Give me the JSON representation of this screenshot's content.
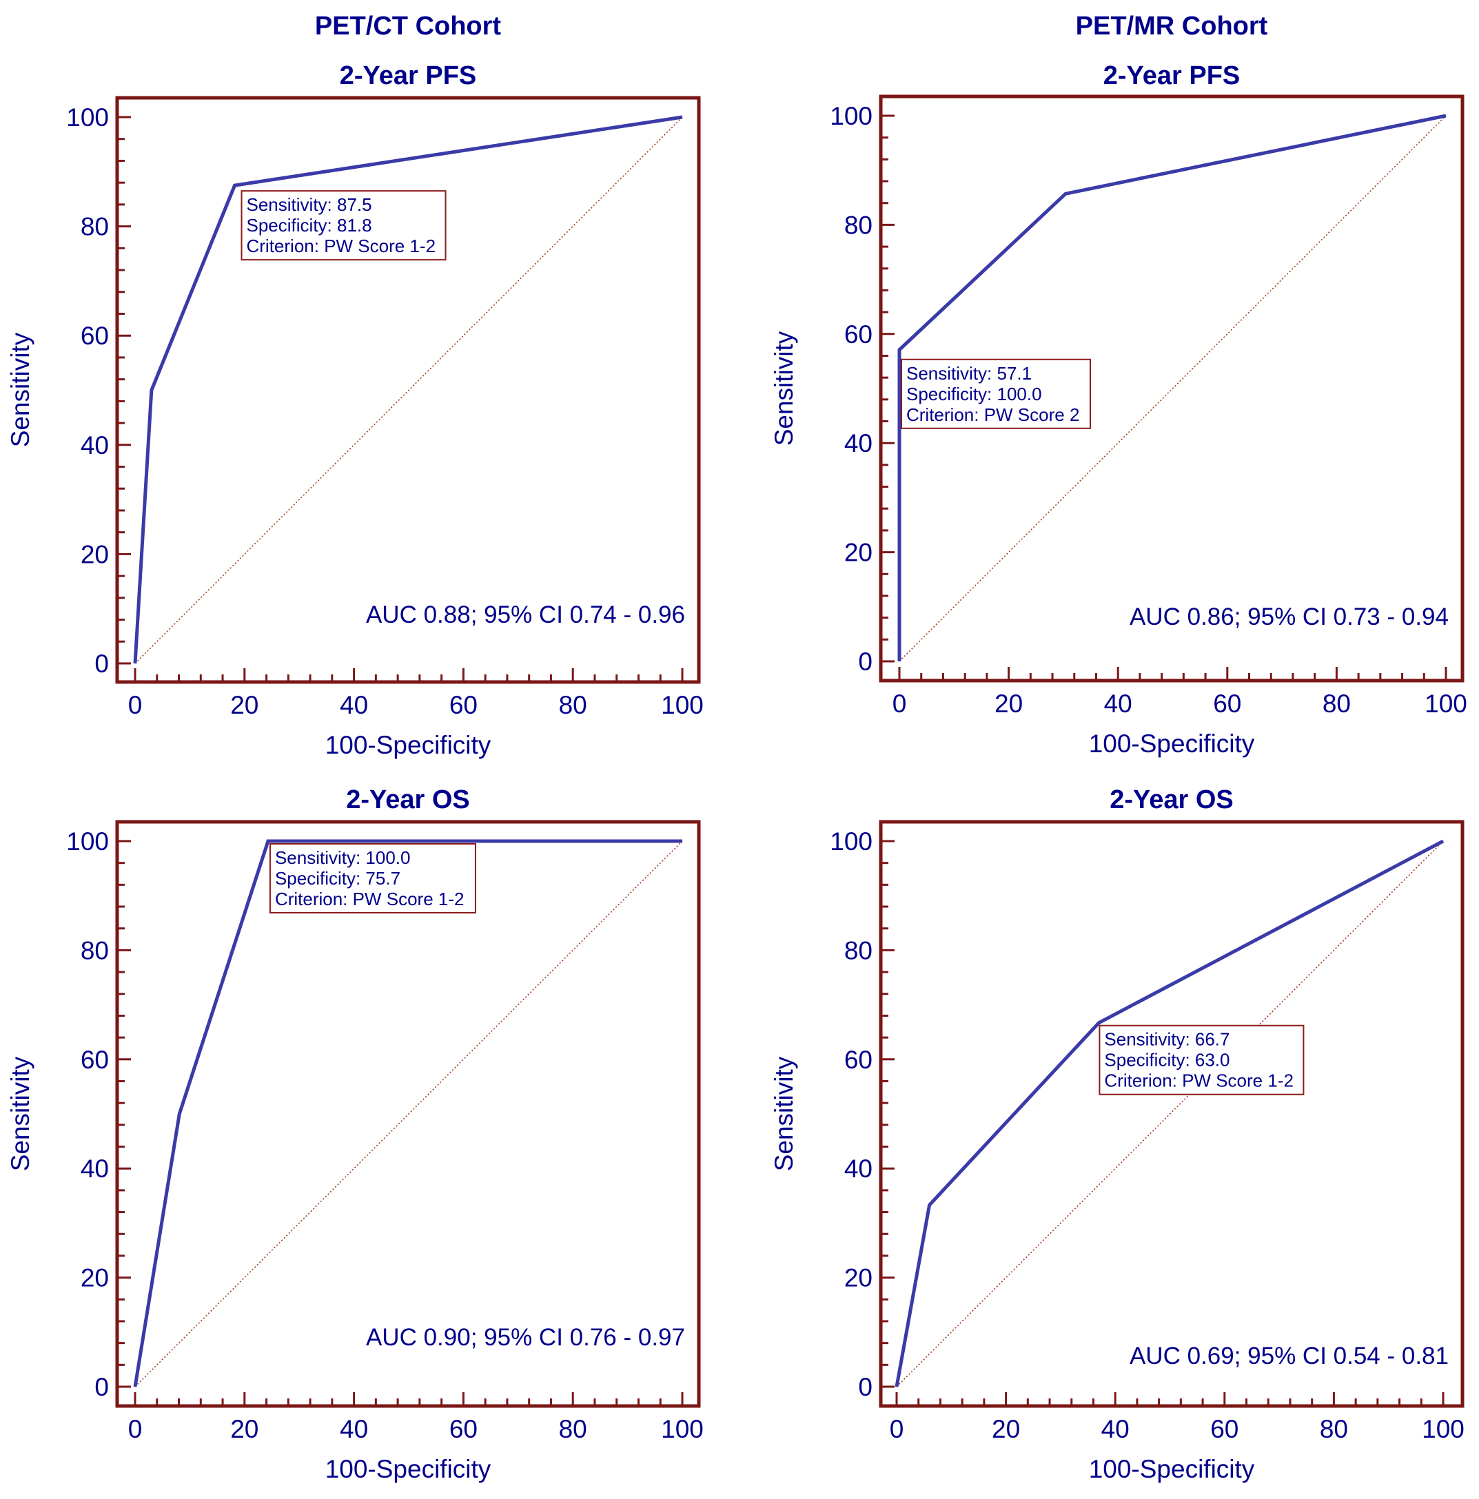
{
  "column_titles": [
    "PET/CT Cohort",
    "PET/MR Cohort"
  ],
  "colors": {
    "frame": "#7b1616",
    "roc_line": "#3a3aa8",
    "text": "#00008b",
    "reference_line": "#a33a1a"
  },
  "chart_data": [
    {
      "type": "line",
      "title": "2-Year PFS",
      "xlabel": "100-Specificity",
      "ylabel": "Sensitivity",
      "xlim": [
        0,
        100
      ],
      "ylim": [
        0,
        100
      ],
      "xticks": [
        0,
        20,
        40,
        60,
        80,
        100
      ],
      "yticks": [
        0,
        20,
        40,
        60,
        80,
        100
      ],
      "x": [
        0,
        3,
        18.2,
        100
      ],
      "y": [
        0,
        50,
        87.5,
        100
      ],
      "reference_line": [
        [
          0,
          0
        ],
        [
          100,
          100
        ]
      ],
      "annotation": {
        "lines": [
          "Sensitivity: 87.5",
          "Specificity: 81.8",
          "Criterion: PW Score 1-2"
        ],
        "at": [
          18.2,
          87.5
        ]
      },
      "auc_text": "AUC 0.88; 95% CI 0.74 - 0.96"
    },
    {
      "type": "line",
      "title": "2-Year PFS",
      "xlabel": "100-Specificity",
      "ylabel": "Sensitivity",
      "xlim": [
        0,
        100
      ],
      "ylim": [
        0,
        100
      ],
      "xticks": [
        0,
        20,
        40,
        60,
        80,
        100
      ],
      "yticks": [
        0,
        20,
        40,
        60,
        80,
        100
      ],
      "x": [
        0,
        0,
        30.4,
        100
      ],
      "y": [
        0,
        57.1,
        85.7,
        100
      ],
      "reference_line": [
        [
          0,
          0
        ],
        [
          100,
          100
        ]
      ],
      "annotation": {
        "lines": [
          "Sensitivity: 57.1",
          "Specificity: 100.0",
          "Criterion: PW Score 2"
        ],
        "at": [
          0,
          57.1
        ]
      },
      "auc_text": "AUC 0.86; 95% CI 0.73 - 0.94"
    },
    {
      "type": "line",
      "title": "2-Year OS",
      "xlabel": "100-Specificity",
      "ylabel": "Sensitivity",
      "xlim": [
        0,
        100
      ],
      "ylim": [
        0,
        100
      ],
      "xticks": [
        0,
        20,
        40,
        60,
        80,
        100
      ],
      "yticks": [
        0,
        20,
        40,
        60,
        80,
        100
      ],
      "x": [
        0,
        8.1,
        24.3,
        100
      ],
      "y": [
        0,
        50,
        100,
        100
      ],
      "reference_line": [
        [
          0,
          0
        ],
        [
          100,
          100
        ]
      ],
      "annotation": {
        "lines": [
          "Sensitivity: 100.0",
          "Specificity: 75.7",
          "Criterion: PW Score 1-2"
        ],
        "at": [
          24.3,
          100
        ]
      },
      "auc_text": "AUC 0.90; 95% CI 0.76 - 0.97"
    },
    {
      "type": "line",
      "title": "2-Year OS",
      "xlabel": "100-Specificity",
      "ylabel": "Sensitivity",
      "xlim": [
        0,
        100
      ],
      "ylim": [
        0,
        100
      ],
      "xticks": [
        0,
        20,
        40,
        60,
        80,
        100
      ],
      "yticks": [
        0,
        20,
        40,
        60,
        80,
        100
      ],
      "x": [
        0,
        6,
        37,
        100
      ],
      "y": [
        0,
        33.3,
        66.7,
        100
      ],
      "reference_line": [
        [
          0,
          0
        ],
        [
          100,
          100
        ]
      ],
      "annotation": {
        "lines": [
          "Sensitivity: 66.7",
          "Specificity: 63.0",
          "Criterion: PW Score 1-2"
        ],
        "at": [
          37,
          66.7
        ]
      },
      "auc_text": "AUC 0.69; 95% CI 0.54 - 0.81"
    }
  ]
}
